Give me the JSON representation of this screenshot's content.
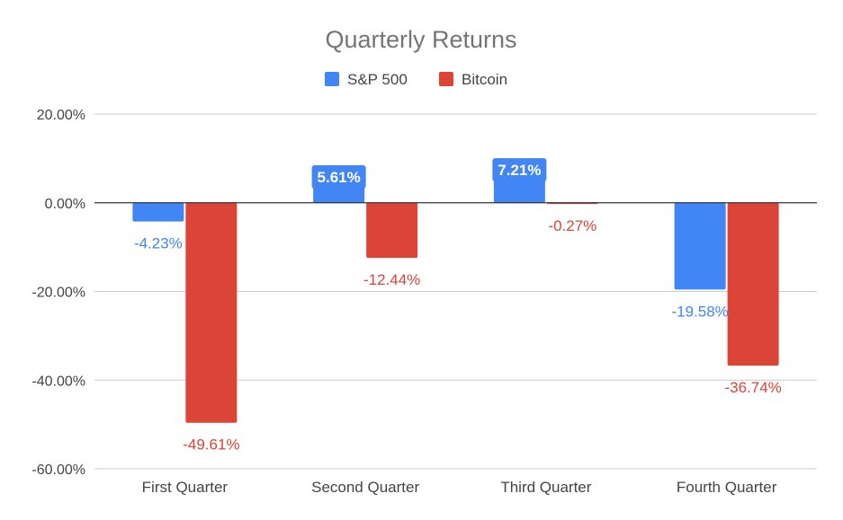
{
  "chart_data": {
    "type": "bar",
    "title": "Quarterly Returns",
    "categories": [
      "First Quarter",
      "Second Quarter",
      "Third Quarter",
      "Fourth Quarter"
    ],
    "series": [
      {
        "name": "S&P 500",
        "color": "#4285f4",
        "values": [
          -4.23,
          5.61,
          7.21,
          -19.58
        ],
        "labels": [
          "-4.23%",
          "5.61%",
          "7.21%",
          "-19.58%"
        ]
      },
      {
        "name": "Bitcoin",
        "color": "#db4437",
        "values": [
          -49.61,
          -12.44,
          -0.27,
          -36.74
        ],
        "labels": [
          "-49.61%",
          "-12.44%",
          "-0.27%",
          "-36.74%"
        ]
      }
    ],
    "yticks": [
      20,
      0,
      -20,
      -40,
      -60
    ],
    "ytick_labels": [
      "20.00%",
      "0.00%",
      "-20.00%",
      "-40.00%",
      "-60.00%"
    ],
    "ylim": [
      -60,
      20
    ],
    "grid": true,
    "legend_position": "top"
  }
}
